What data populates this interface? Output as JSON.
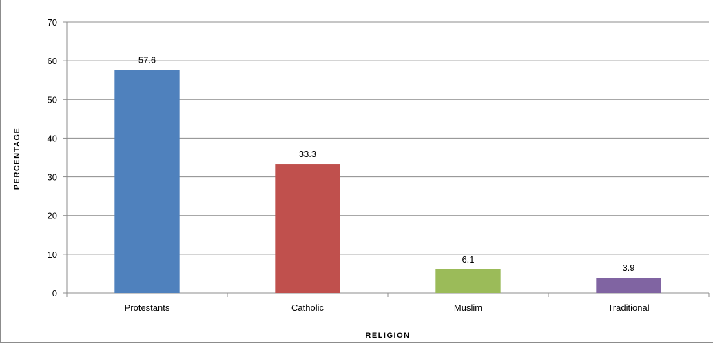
{
  "chart_data": {
    "type": "bar",
    "title": "",
    "xlabel": "RELIGION",
    "ylabel": "PERCENTAGE",
    "categories": [
      "Protestants",
      "Catholic",
      "Muslim",
      "Traditional"
    ],
    "values": [
      57.6,
      33.3,
      6.1,
      3.9
    ],
    "data_labels": [
      "57.6",
      "33.3",
      "6.1",
      "3.9"
    ],
    "colors": [
      "#4f81bd",
      "#c0504d",
      "#9bbb59",
      "#8064a2"
    ],
    "ylim": [
      0,
      70
    ],
    "yticks": [
      0,
      10,
      20,
      30,
      40,
      50,
      60,
      70
    ],
    "grid": true,
    "legend": "none"
  }
}
